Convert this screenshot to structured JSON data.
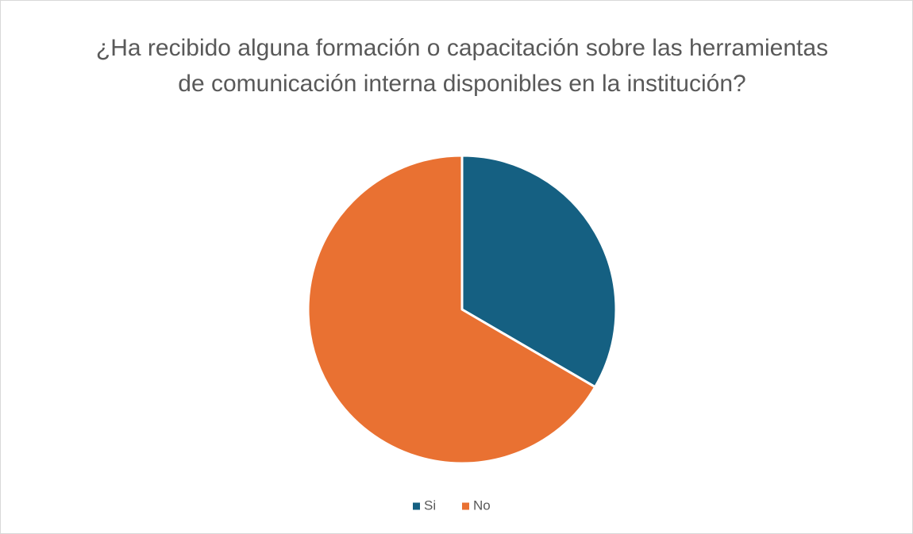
{
  "chart_data": {
    "type": "pie",
    "title": "¿Ha recibido alguna formación o capacitación sobre las herramientas de comunicación interna disponibles en la institución?",
    "categories": [
      "Si",
      "No"
    ],
    "values": [
      33.4,
      66.6
    ],
    "colors": [
      "#156082",
      "#e97132"
    ],
    "legend": "bottom"
  }
}
